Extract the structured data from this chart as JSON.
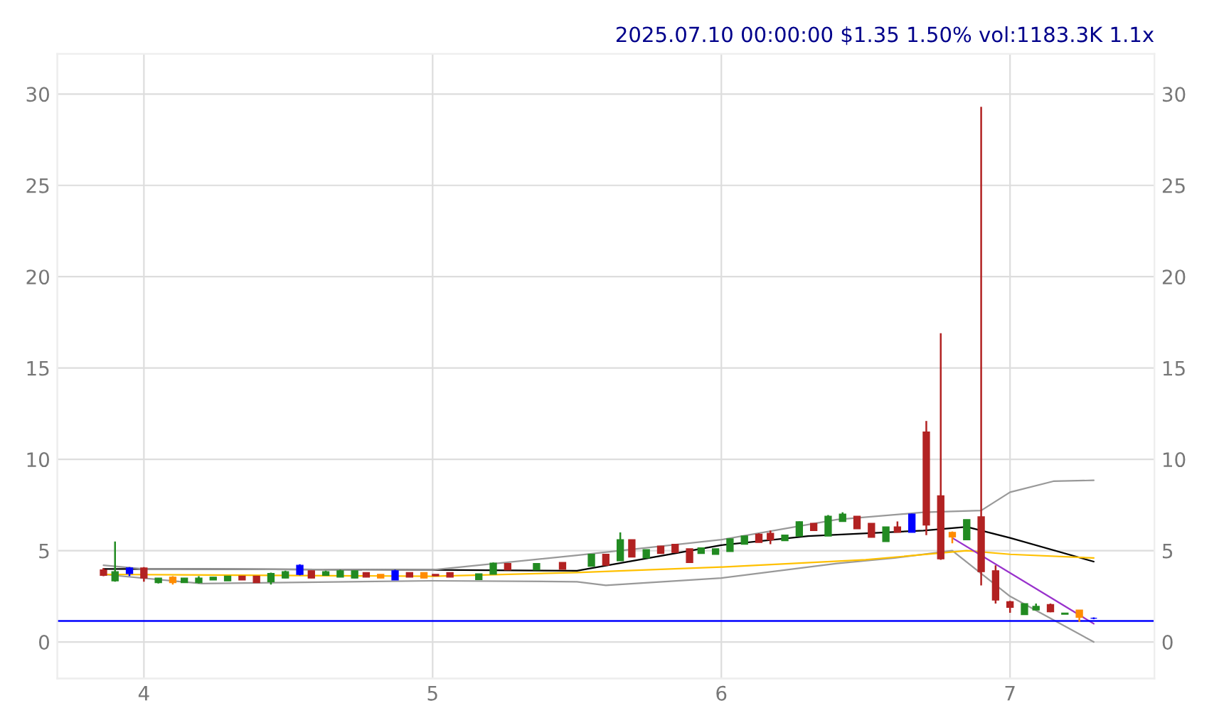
{
  "chart_data": {
    "type": "candlestick",
    "title": "2025.07.10 00:00:00 $1.35 1.50% vol:1183.3K 1.1x",
    "x": [
      3.86,
      3.9,
      3.95,
      4.0,
      4.05,
      4.1,
      4.14,
      4.19,
      4.24,
      4.29,
      4.34,
      4.39,
      4.44,
      4.49,
      4.54,
      4.58,
      4.63,
      4.68,
      4.73,
      4.77,
      4.82,
      4.87,
      4.92,
      4.97,
      5.01,
      5.06,
      5.16,
      5.21,
      5.26,
      5.36,
      5.45,
      5.55,
      5.6,
      5.65,
      5.69,
      5.74,
      5.79,
      5.84,
      5.89,
      5.93,
      5.98,
      6.03,
      6.08,
      6.13,
      6.17,
      6.22,
      6.27,
      6.32,
      6.37,
      6.42,
      6.47,
      6.52,
      6.57,
      6.61,
      6.66,
      6.71,
      6.76,
      6.8,
      6.85,
      6.9,
      6.95,
      7.0,
      7.05,
      7.09,
      7.14,
      7.19,
      7.24,
      7.29
    ],
    "ohlc": [
      [
        3.95,
        4.05,
        3.6,
        3.65
      ],
      [
        3.35,
        5.5,
        3.3,
        3.85
      ],
      [
        3.75,
        4.1,
        3.6,
        4.05
      ],
      [
        4.05,
        4.1,
        3.3,
        3.5
      ],
      [
        3.25,
        3.5,
        3.2,
        3.5
      ],
      [
        3.55,
        3.6,
        3.15,
        3.25
      ],
      [
        3.25,
        3.5,
        3.25,
        3.5
      ],
      [
        3.25,
        3.6,
        3.2,
        3.5
      ],
      [
        3.4,
        3.55,
        3.4,
        3.55
      ],
      [
        3.35,
        3.6,
        3.35,
        3.6
      ],
      [
        3.6,
        3.6,
        3.4,
        3.4
      ],
      [
        3.6,
        3.6,
        3.25,
        3.25
      ],
      [
        3.3,
        3.8,
        3.15,
        3.75
      ],
      [
        3.5,
        3.9,
        3.5,
        3.85
      ],
      [
        3.7,
        4.25,
        3.65,
        4.2
      ],
      [
        3.9,
        3.9,
        3.5,
        3.5
      ],
      [
        3.65,
        3.9,
        3.65,
        3.85
      ],
      [
        3.55,
        3.95,
        3.55,
        3.9
      ],
      [
        3.5,
        3.9,
        3.5,
        3.9
      ],
      [
        3.8,
        3.8,
        3.55,
        3.55
      ],
      [
        3.7,
        3.7,
        3.5,
        3.5
      ],
      [
        3.4,
        3.95,
        3.4,
        3.9
      ],
      [
        3.8,
        3.8,
        3.55,
        3.55
      ],
      [
        3.8,
        3.8,
        3.5,
        3.5
      ],
      [
        3.7,
        3.7,
        3.62,
        3.62
      ],
      [
        3.8,
        3.8,
        3.55,
        3.55
      ],
      [
        3.42,
        3.73,
        3.42,
        3.73
      ],
      [
        3.71,
        4.35,
        3.71,
        4.32
      ],
      [
        4.3,
        4.3,
        3.95,
        3.95
      ],
      [
        3.95,
        4.3,
        3.95,
        4.3
      ],
      [
        4.35,
        4.35,
        3.98,
        3.98
      ],
      [
        4.15,
        4.8,
        4.15,
        4.8
      ],
      [
        4.8,
        4.8,
        4.2,
        4.2
      ],
      [
        4.45,
        6.0,
        4.45,
        5.6
      ],
      [
        5.6,
        5.6,
        4.65,
        4.65
      ],
      [
        4.6,
        5.05,
        4.6,
        5.05
      ],
      [
        5.25,
        5.25,
        4.85,
        4.85
      ],
      [
        5.35,
        5.35,
        4.9,
        4.9
      ],
      [
        5.1,
        5.1,
        4.35,
        4.35
      ],
      [
        4.85,
        5.15,
        4.85,
        5.15
      ],
      [
        4.8,
        5.1,
        4.8,
        5.1
      ],
      [
        4.95,
        5.65,
        4.95,
        5.65
      ],
      [
        5.35,
        5.8,
        5.35,
        5.8
      ],
      [
        5.9,
        5.95,
        5.45,
        5.45
      ],
      [
        5.95,
        6.1,
        5.35,
        5.6
      ],
      [
        5.55,
        5.85,
        5.55,
        5.85
      ],
      [
        5.8,
        6.6,
        5.8,
        6.58
      ],
      [
        6.49,
        6.49,
        6.1,
        6.1
      ],
      [
        5.8,
        6.95,
        5.8,
        6.88
      ],
      [
        6.6,
        7.1,
        6.6,
        7.0
      ],
      [
        6.88,
        6.88,
        6.2,
        6.2
      ],
      [
        6.49,
        6.49,
        5.73,
        5.73
      ],
      [
        5.5,
        6.3,
        5.5,
        6.3
      ],
      [
        6.3,
        6.6,
        6.0,
        6.0
      ],
      [
        6.0,
        7.02,
        6.0,
        7.0
      ],
      [
        11.5,
        12.1,
        5.85,
        6.4
      ],
      [
        8.0,
        16.9,
        4.5,
        4.55
      ],
      [
        6.0,
        6.05,
        5.4,
        5.75
      ],
      [
        5.6,
        6.7,
        5.6,
        6.7
      ],
      [
        6.85,
        29.3,
        3.1,
        3.85
      ],
      [
        3.9,
        4.2,
        2.1,
        2.3
      ],
      [
        2.2,
        2.25,
        1.6,
        1.9
      ],
      [
        1.5,
        2.1,
        1.5,
        2.1
      ],
      [
        1.75,
        2.1,
        1.75,
        1.95
      ],
      [
        2.05,
        2.1,
        1.63,
        1.65
      ],
      [
        1.52,
        1.58,
        1.52,
        1.58
      ],
      [
        1.75,
        1.75,
        1.1,
        1.35
      ],
      [
        1.3,
        1.35,
        1.25,
        1.3
      ]
    ],
    "colors": [
      "#b22222",
      "#228b22",
      "#0000ff",
      "#b22222",
      "#228b22",
      "#ff8c00",
      "#228b22",
      "#228b22",
      "#228b22",
      "#228b22",
      "#b22222",
      "#b22222",
      "#228b22",
      "#228b22",
      "#0000ff",
      "#b22222",
      "#228b22",
      "#228b22",
      "#228b22",
      "#b22222",
      "#ff8c00",
      "#0000ff",
      "#b22222",
      "#ff8c00",
      "#b22222",
      "#b22222",
      "#228b22",
      "#228b22",
      "#b22222",
      "#228b22",
      "#b22222",
      "#228b22",
      "#b22222",
      "#228b22",
      "#b22222",
      "#228b22",
      "#b22222",
      "#b22222",
      "#b22222",
      "#228b22",
      "#228b22",
      "#228b22",
      "#228b22",
      "#b22222",
      "#b22222",
      "#228b22",
      "#228b22",
      "#b22222",
      "#228b22",
      "#228b22",
      "#b22222",
      "#b22222",
      "#228b22",
      "#b22222",
      "#0000ff",
      "#b22222",
      "#b22222",
      "#ff8c00",
      "#228b22",
      "#b22222",
      "#b22222",
      "#b22222",
      "#228b22",
      "#228b22",
      "#b22222",
      "#228b22",
      "#ff8c00",
      "#0000ff"
    ],
    "series": [
      {
        "type": "line",
        "color": "#000000",
        "x": [
          3.86,
          4.0,
          5.0,
          5.5,
          6.0,
          6.3,
          6.7,
          6.85,
          7.0,
          7.29
        ],
        "values": [
          4.0,
          4.0,
          3.95,
          3.9,
          5.3,
          5.8,
          6.1,
          6.3,
          5.7,
          4.4
        ]
      },
      {
        "type": "line",
        "color": "#999999",
        "x": [
          3.86,
          4.0,
          5.0,
          5.5,
          6.0,
          6.4,
          6.7,
          6.9,
          7.0,
          7.15,
          7.29
        ],
        "values": [
          4.2,
          4.0,
          3.95,
          4.75,
          5.6,
          6.7,
          7.1,
          7.2,
          8.2,
          8.8,
          8.85
        ]
      },
      {
        "type": "line",
        "color": "#999999",
        "x": [
          3.86,
          4.2,
          5.0,
          5.5,
          5.6,
          6.0,
          6.4,
          6.6,
          6.8,
          7.0,
          7.29
        ],
        "values": [
          3.7,
          3.2,
          3.35,
          3.3,
          3.1,
          3.5,
          4.3,
          4.6,
          5.0,
          2.5,
          0.0
        ]
      },
      {
        "type": "line",
        "color": "#ffc000",
        "x": [
          3.86,
          5.0,
          5.5,
          6.0,
          6.5,
          6.85,
          7.0,
          7.29
        ],
        "values": [
          3.7,
          3.6,
          3.8,
          4.1,
          4.5,
          5.0,
          4.8,
          4.6
        ]
      },
      {
        "type": "line",
        "color": "#9932cc",
        "x": [
          6.8,
          7.29
        ],
        "values": [
          5.7,
          1.0
        ]
      }
    ],
    "ref_lines": [
      {
        "axis": "y",
        "value": 1.15,
        "color": "#0000ff"
      }
    ],
    "xlim": [
      3.7,
      7.5
    ],
    "xticks": [
      4,
      5,
      6,
      7
    ],
    "ylim": [
      -2,
      32.2
    ],
    "yticks": [
      0,
      5,
      10,
      15,
      20,
      25,
      30
    ],
    "y2lim": [
      -2,
      32.2
    ],
    "y2ticks": [
      0,
      5,
      10,
      15,
      20,
      25,
      30
    ],
    "grid": true
  }
}
